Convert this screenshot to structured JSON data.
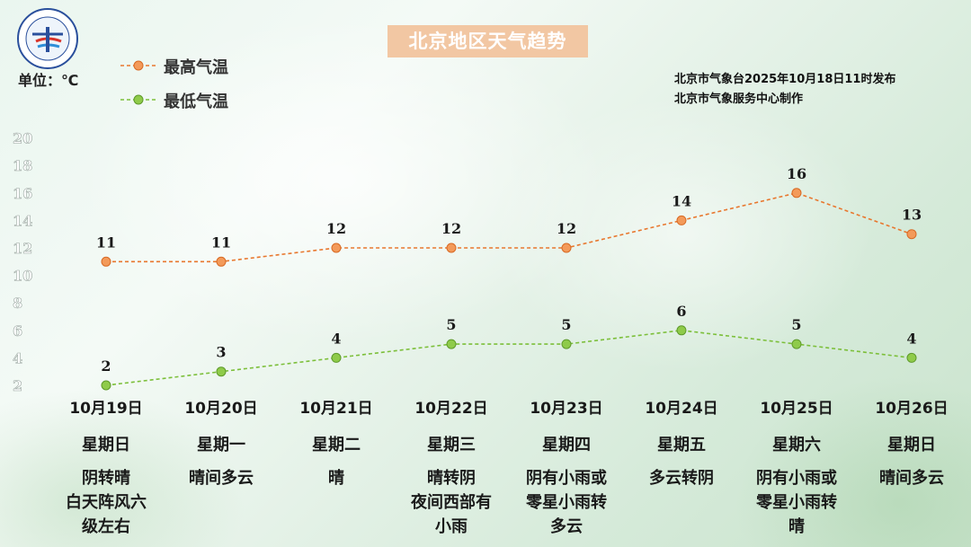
{
  "header": {
    "title": "北京地区天气趋势",
    "unit_label": "单位：℃",
    "source_line1": "北京市气象台2025年10月18日11时发布",
    "source_line2": "北京市气象服务中心制作"
  },
  "legend": {
    "high_label": "最高气温",
    "low_label": "最低气温"
  },
  "colors": {
    "high": "#e8772e",
    "low": "#7cbf3a",
    "title_bg": "#f2c7a3"
  },
  "days": [
    {
      "date": "10月19日",
      "weekday": "星期日",
      "weather": [
        "阴转晴",
        "白天阵风六",
        "级左右"
      ]
    },
    {
      "date": "10月20日",
      "weekday": "星期一",
      "weather": [
        "晴间多云"
      ]
    },
    {
      "date": "10月21日",
      "weekday": "星期二",
      "weather": [
        "晴"
      ]
    },
    {
      "date": "10月22日",
      "weekday": "星期三",
      "weather": [
        "晴转阴",
        "夜间西部有",
        "小雨"
      ]
    },
    {
      "date": "10月23日",
      "weekday": "星期四",
      "weather": [
        "阴有小雨或",
        "零星小雨转",
        "多云"
      ]
    },
    {
      "date": "10月24日",
      "weekday": "星期五",
      "weather": [
        "多云转阴"
      ]
    },
    {
      "date": "10月25日",
      "weekday": "星期六",
      "weather": [
        "阴有小雨或",
        "零星小雨转",
        "晴"
      ]
    },
    {
      "date": "10月26日",
      "weekday": "星期日",
      "weather": [
        "晴间多云"
      ]
    }
  ],
  "chart_data": {
    "type": "line",
    "categories": [
      "10月19日",
      "10月20日",
      "10月21日",
      "10月22日",
      "10月23日",
      "10月24日",
      "10月25日",
      "10月26日"
    ],
    "series": [
      {
        "name": "最高气温",
        "values": [
          11,
          11,
          12,
          12,
          12,
          14,
          16,
          13
        ]
      },
      {
        "name": "最低气温",
        "values": [
          2,
          3,
          4,
          5,
          5,
          6,
          5,
          4
        ]
      }
    ],
    "y_ticks": [
      2,
      4,
      6,
      8,
      10,
      12,
      14,
      16,
      18,
      20
    ],
    "ylim": [
      2,
      20
    ],
    "ylabel": "单位：℃",
    "grid": false,
    "legend_position": "top-left"
  }
}
